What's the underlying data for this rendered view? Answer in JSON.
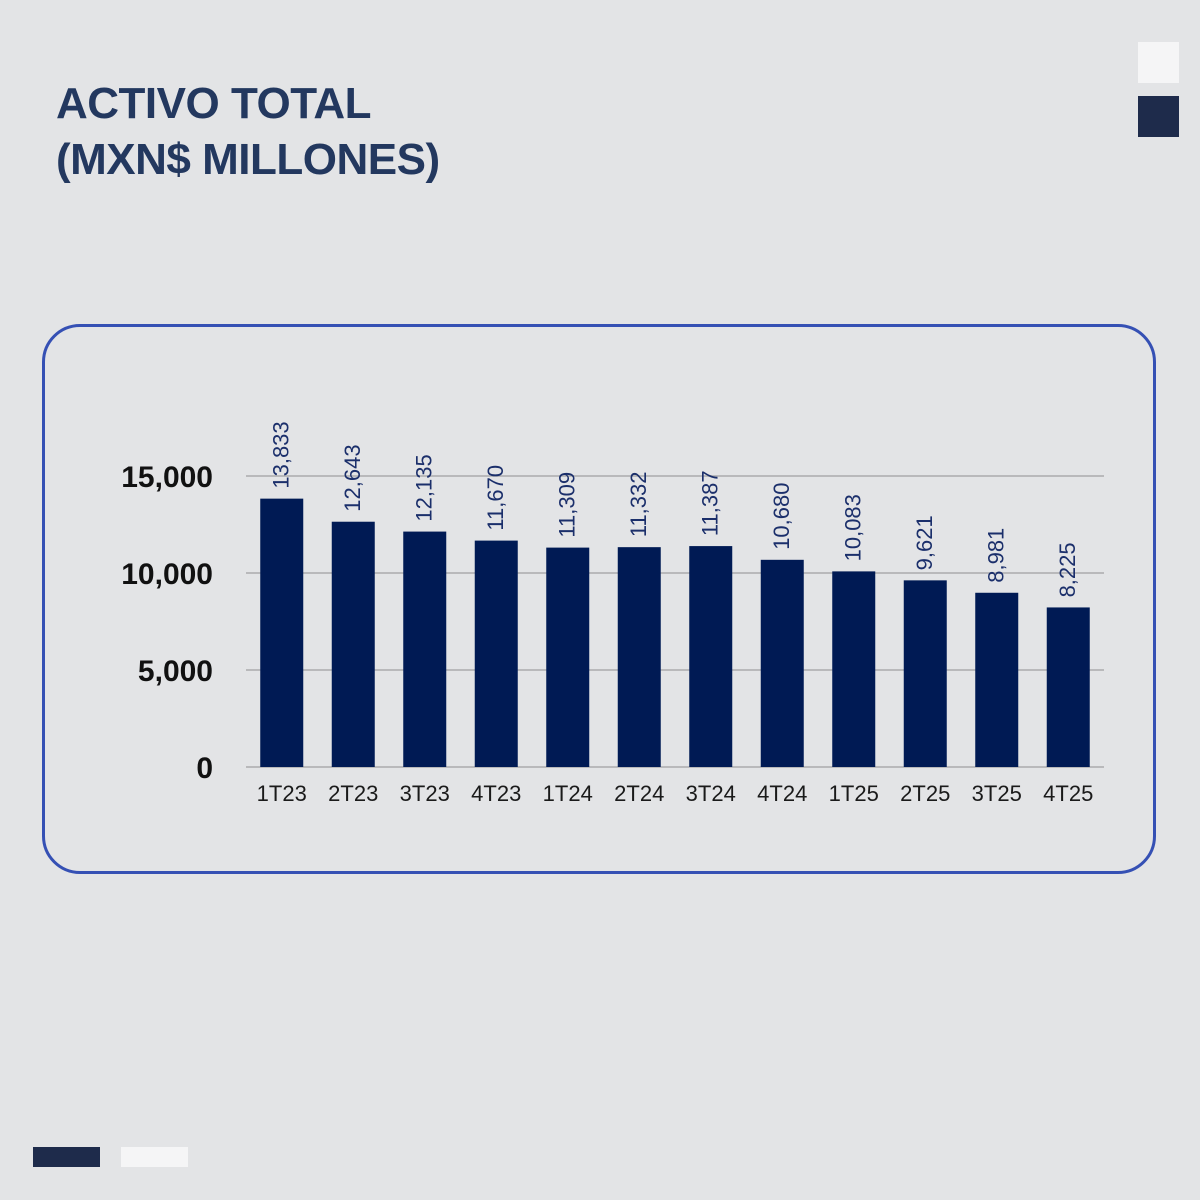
{
  "header": {
    "title_line1": "ACTIVO TOTAL",
    "title_line2": "(MXN$ MILLONES)"
  },
  "colors": {
    "background": "#e3e4e6",
    "title": "#23385f",
    "bar": "#001a54",
    "frame": "#3550b4",
    "gridline": "#b9b9bb",
    "data_label": "#1b2f6b",
    "accent_dark": "#1e2b4b",
    "accent_light": "#f5f5f6"
  },
  "chart_data": {
    "type": "bar",
    "categories": [
      "1T23",
      "2T23",
      "3T23",
      "4T23",
      "1T24",
      "2T24",
      "3T24",
      "4T24",
      "1T25",
      "2T25",
      "3T25",
      "4T25"
    ],
    "values": [
      13833,
      12643,
      12135,
      11670,
      11309,
      11332,
      11387,
      10680,
      10083,
      9621,
      8981,
      8225
    ],
    "data_labels": [
      "13,833",
      "12,643",
      "12,135",
      "11,670",
      "11,309",
      "11,332",
      "11,387",
      "10,680",
      "10,083",
      "9,621",
      "8,981",
      "8,225"
    ],
    "yticks": [
      0,
      5000,
      10000,
      15000
    ],
    "ytick_labels": [
      "0",
      "5,000",
      "10,000",
      "15,000"
    ],
    "ylim": [
      0,
      15000
    ],
    "grid": true,
    "legend": "none",
    "data_label_orientation": "vertical"
  }
}
